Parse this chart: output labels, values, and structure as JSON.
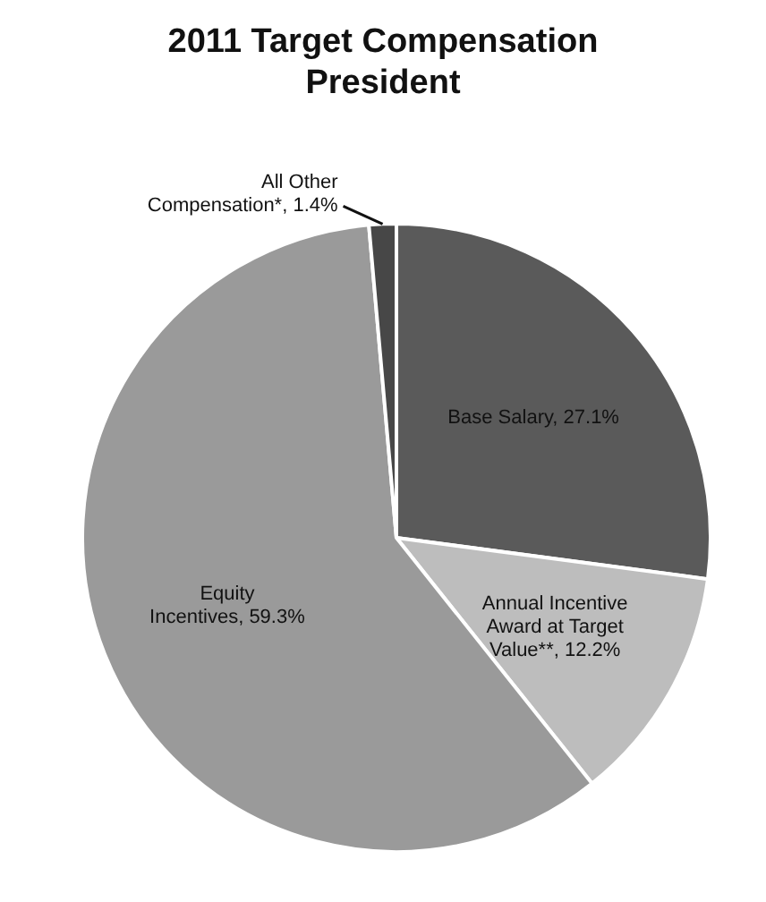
{
  "chart_data": {
    "type": "pie",
    "title": "2011 Target Compensation President",
    "categories": [
      "Base Salary",
      "Annual Incentive Award at Target Value**",
      "Equity Incentives",
      "All Other Compensation*"
    ],
    "values": [
      27.1,
      12.2,
      59.3,
      1.4
    ],
    "value_labels": [
      "27.1%",
      "12.2%",
      "59.3%",
      "1.4%"
    ],
    "colors": [
      "#5a5a5a",
      "#bdbdbd",
      "#9a9a9a",
      "#474747"
    ],
    "legend": false
  }
}
